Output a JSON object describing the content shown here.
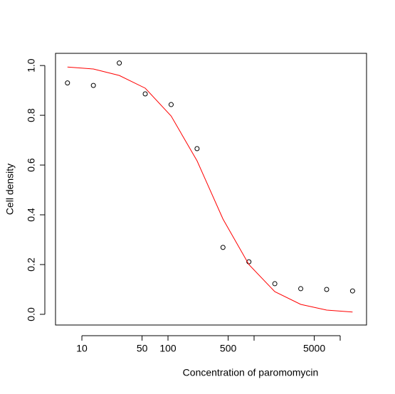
{
  "chart_data": {
    "type": "scatter",
    "xlabel": "Concentration of paromomycin",
    "ylabel": "Cell density",
    "xlog": true,
    "x": [
      6.8,
      13.6,
      27.2,
      54.4,
      108.8,
      217.6,
      435.2,
      870.4,
      1740.8,
      3481.6,
      6963.2,
      13926.4
    ],
    "series": [
      {
        "color": "#000000",
        "style": "points",
        "values": [
          0.93,
          0.92,
          1.01,
          0.886,
          0.843,
          0.666,
          0.269,
          0.211,
          0.123,
          0.103,
          0.1,
          0.094
        ]
      },
      {
        "color": "#ff0000",
        "style": "line",
        "values": [
          0.994,
          0.986,
          0.96,
          0.909,
          0.797,
          0.617,
          0.383,
          0.2,
          0.091,
          0.04,
          0.017,
          0.009
        ]
      }
    ],
    "xlim": [
      4.94,
      20230
    ],
    "ylim": [
      -0.043,
      1.049
    ],
    "xticks": [
      10,
      50,
      100,
      500,
      {
        "value": 1000,
        "label": null
      },
      5000,
      {
        "value": 10000,
        "label": null
      }
    ],
    "yticks": [
      {
        "value": 0,
        "label": "0.0"
      },
      0.2,
      0.4,
      0.6,
      0.8,
      {
        "value": 1,
        "label": "1.0"
      }
    ]
  }
}
